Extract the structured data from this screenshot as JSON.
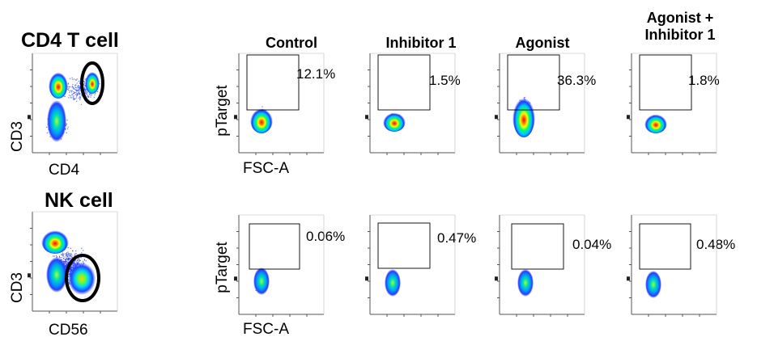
{
  "chart_data": {
    "type": "scatter",
    "description_kind": "flow-cytometry-density-plots",
    "rows": [
      {
        "id": "cd4",
        "title": "CD4 T cell",
        "gating": {
          "x_label": "CD4",
          "y_label": "CD3",
          "gate_shape": "ellipse",
          "populations": [
            "CD4+CD3+ (gated)",
            "CD3+CD4-",
            "CD3- low"
          ]
        }
      },
      {
        "id": "nk",
        "title": "NK cell",
        "gating": {
          "x_label": "CD56",
          "y_label": "CD3",
          "gate_shape": "ellipse",
          "populations": [
            "CD3+CD56-",
            "CD56+CD3- (gated)",
            "CD3- low"
          ]
        }
      }
    ],
    "conditions": [
      "Control",
      "Inhibitor 1",
      "Agonist",
      "Agonist + Inhibitor 1"
    ],
    "condition_title_lines": [
      [
        "Control"
      ],
      [
        "Inhibitor 1"
      ],
      [
        "Agonist"
      ],
      [
        "Agonist +",
        "Inhibitor 1"
      ]
    ],
    "x_label": "FSC-A",
    "y_label": "pTarget",
    "gate_shape": "rectangle",
    "percent_positive": [
      {
        "row": "cd4",
        "values": [
          "12.1%",
          "1.5%",
          "36.3%",
          "1.8%"
        ]
      },
      {
        "row": "nk",
        "values": [
          "0.06%",
          "0.47%",
          "0.04%",
          "0.48%"
        ]
      }
    ]
  },
  "colors": {
    "density_low": "#0000ff",
    "density_mid_low": "#00e5ff",
    "density_mid": "#00ff00",
    "density_mid_high": "#ffff00",
    "density_high": "#ff0000",
    "gate_outline": "#000000",
    "axis": "#555555"
  }
}
